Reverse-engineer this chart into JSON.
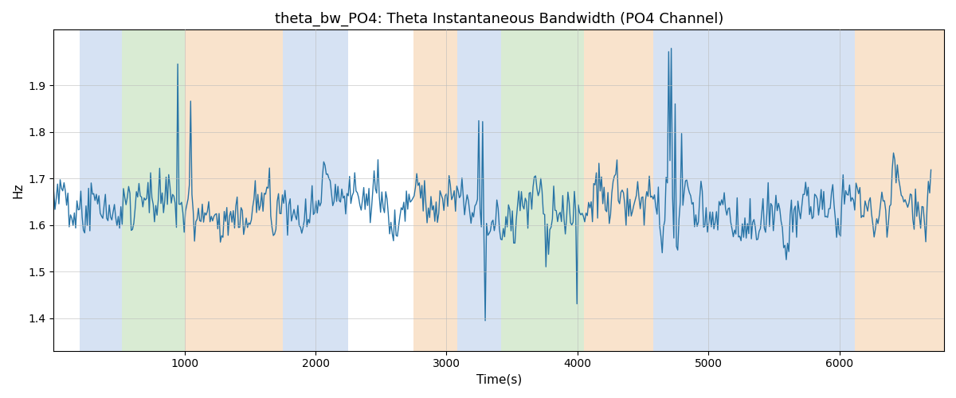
{
  "title": "theta_bw_PO4: Theta Instantaneous Bandwidth (PO4 Channel)",
  "xlabel": "Time(s)",
  "ylabel": "Hz",
  "line_color": "#2874a6",
  "line_width": 1.0,
  "ylim": [
    1.33,
    2.02
  ],
  "xlim": [
    0,
    6800
  ],
  "yticks": [
    1.4,
    1.5,
    1.6,
    1.7,
    1.8,
    1.9
  ],
  "xticks": [
    1000,
    2000,
    3000,
    4000,
    5000,
    6000
  ],
  "grid_color": "#bbbbbb",
  "bg_color": "white",
  "figsize": [
    12.0,
    5.0
  ],
  "dpi": 100,
  "seed": 42,
  "n_points": 680,
  "base_mean": 1.635,
  "base_std": 0.055,
  "colored_regions": [
    {
      "start": 200,
      "end": 520,
      "color": "#aec6e8",
      "alpha": 0.5
    },
    {
      "start": 520,
      "end": 1000,
      "color": "#b5d8a8",
      "alpha": 0.5
    },
    {
      "start": 1000,
      "end": 1750,
      "color": "#f5c99a",
      "alpha": 0.5
    },
    {
      "start": 1750,
      "end": 2250,
      "color": "#aec6e8",
      "alpha": 0.5
    },
    {
      "start": 2750,
      "end": 3080,
      "color": "#f5c99a",
      "alpha": 0.5
    },
    {
      "start": 3080,
      "end": 3420,
      "color": "#aec6e8",
      "alpha": 0.5
    },
    {
      "start": 3420,
      "end": 4050,
      "color": "#b5d8a8",
      "alpha": 0.5
    },
    {
      "start": 4050,
      "end": 4580,
      "color": "#f5c99a",
      "alpha": 0.5
    },
    {
      "start": 4580,
      "end": 6120,
      "color": "#aec6e8",
      "alpha": 0.5
    },
    {
      "start": 6120,
      "end": 6800,
      "color": "#f5c99a",
      "alpha": 0.5
    }
  ]
}
